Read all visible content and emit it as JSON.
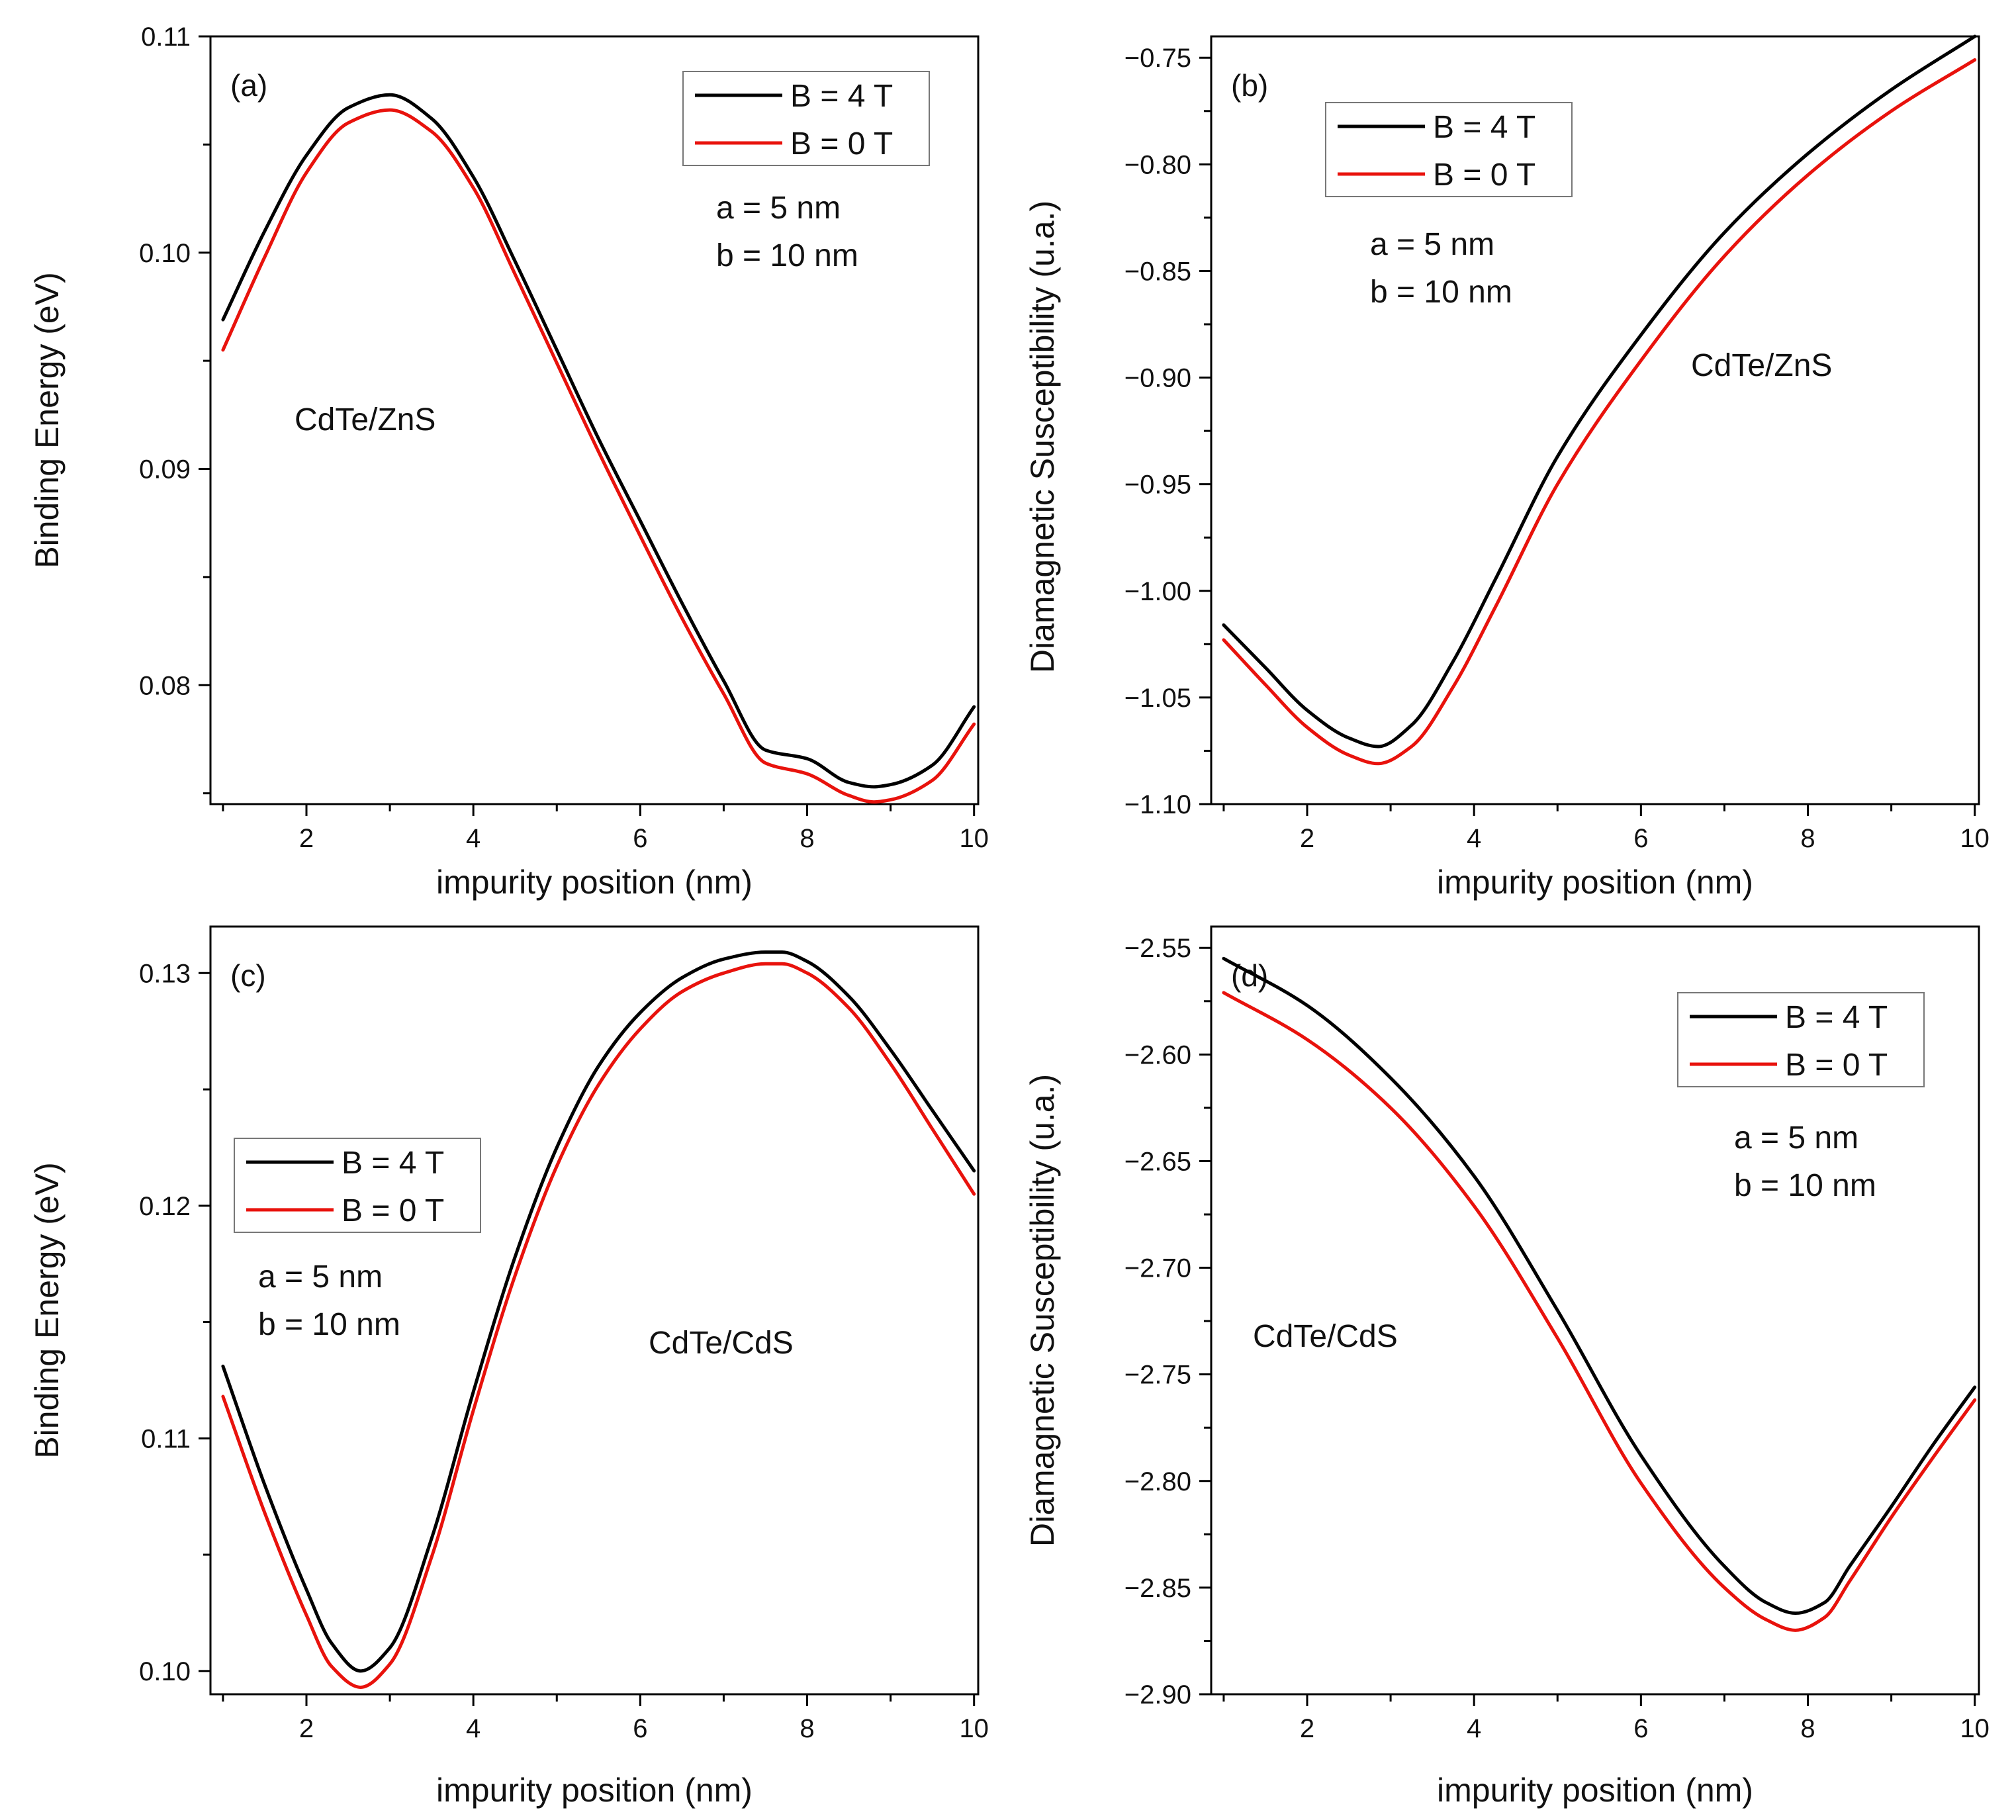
{
  "chart_data": [
    {
      "id": "a",
      "type": "line",
      "panel_label": "(a)",
      "xlabel": "impurity position (nm)",
      "ylabel": "Binding Energy (eV)",
      "xlim": [
        0.85,
        10.05
      ],
      "ylim": [
        0.0745,
        0.11
      ],
      "xticks": [
        2,
        4,
        6,
        8,
        10
      ],
      "xtick_labels": [
        "2",
        "4",
        "6",
        "8",
        "10"
      ],
      "yticks": [
        0.08,
        0.09,
        0.1,
        0.11
      ],
      "ytick_labels": [
        "0.08",
        "0.09",
        "0.10",
        "0.11"
      ],
      "legend_position": "top-right",
      "annotations": [
        "a = 5 nm",
        "b = 10 nm",
        "CdTe/ZnS"
      ],
      "x": [
        1.0,
        1.5,
        2.0,
        2.5,
        3.0,
        3.5,
        4.0,
        4.5,
        5.0,
        5.5,
        6.0,
        6.5,
        7.0,
        7.5,
        8.0,
        8.5,
        8.8,
        9.0,
        9.5,
        10.0
      ],
      "series": [
        {
          "name": "B = 4 T",
          "color": "#000000",
          "values": [
            0.0969,
            0.101,
            0.1045,
            0.1067,
            0.1073,
            0.1062,
            0.1035,
            0.0996,
            0.0955,
            0.0914,
            0.0876,
            0.0838,
            0.0802,
            0.077,
            0.0766,
            0.0755,
            0.0753,
            0.0754,
            0.0763,
            0.079
          ]
        },
        {
          "name": "B = 0 T",
          "color": "#e8120c",
          "values": [
            0.0955,
            0.0998,
            0.1037,
            0.106,
            0.1066,
            0.1056,
            0.103,
            0.099,
            0.0949,
            0.0908,
            0.0869,
            0.0831,
            0.0796,
            0.0764,
            0.0759,
            0.0749,
            0.0746,
            0.0747,
            0.0756,
            0.0782
          ]
        }
      ]
    },
    {
      "id": "b",
      "type": "line",
      "panel_label": "(b)",
      "xlabel": "impurity position (nm)",
      "ylabel": "Diamagnetic Susceptibility (u.a.)",
      "xlim": [
        0.85,
        10.05
      ],
      "ylim": [
        -1.1,
        -0.74
      ],
      "xticks": [
        2,
        4,
        6,
        8,
        10
      ],
      "xtick_labels": [
        "2",
        "4",
        "6",
        "8",
        "10"
      ],
      "yticks": [
        -1.1,
        -1.05,
        -1.0,
        -0.95,
        -0.9,
        -0.85,
        -0.8,
        -0.75
      ],
      "ytick_labels": [
        "−1.10",
        "−1.05",
        "−1.00",
        "−0.95",
        "−0.90",
        "−0.85",
        "−0.80",
        "−0.75"
      ],
      "legend_position": "top-left",
      "annotations": [
        "a = 5 nm",
        "b = 10 nm",
        "CdTe/ZnS"
      ],
      "x": [
        1.0,
        1.5,
        2.0,
        2.5,
        2.85,
        3.25,
        3.75,
        4.25,
        5.0,
        6.0,
        7.0,
        8.0,
        9.0,
        10.0
      ],
      "series": [
        {
          "name": "B = 4 T",
          "color": "#000000",
          "values": [
            -1.016,
            -1.036,
            -1.056,
            -1.069,
            -1.073,
            -1.063,
            -1.033,
            -0.995,
            -0.937,
            -0.88,
            -0.832,
            -0.795,
            -0.765,
            -0.74
          ]
        },
        {
          "name": "B = 0 T",
          "color": "#e8120c",
          "values": [
            -1.023,
            -1.044,
            -1.064,
            -1.077,
            -1.081,
            -1.073,
            -1.045,
            -1.008,
            -0.95,
            -0.892,
            -0.843,
            -0.805,
            -0.775,
            -0.751
          ]
        }
      ]
    },
    {
      "id": "c",
      "type": "line",
      "panel_label": "(c)",
      "xlabel": "impurity position (nm)",
      "ylabel": "Binding Energy (eV)",
      "xlim": [
        0.85,
        10.05
      ],
      "ylim": [
        0.099,
        0.132
      ],
      "xticks": [
        2,
        4,
        6,
        8,
        10
      ],
      "xtick_labels": [
        "2",
        "4",
        "6",
        "8",
        "10"
      ],
      "yticks": [
        0.1,
        0.11,
        0.12,
        0.13
      ],
      "ytick_labels": [
        "0.10",
        "0.11",
        "0.12",
        "0.13"
      ],
      "legend_position": "middle-left",
      "annotations": [
        "a = 5 nm",
        "b = 10 nm",
        "CdTe/CdS"
      ],
      "x": [
        1.0,
        1.5,
        2.0,
        2.3,
        2.65,
        3.0,
        3.5,
        4.0,
        4.5,
        5.0,
        5.5,
        6.0,
        6.5,
        7.0,
        7.5,
        7.7,
        8.0,
        8.5,
        9.0,
        9.5,
        10.0
      ],
      "series": [
        {
          "name": "B = 4 T",
          "color": "#000000",
          "values": [
            0.1131,
            0.108,
            0.1035,
            0.1012,
            0.1,
            0.101,
            0.1057,
            0.112,
            0.1178,
            0.1225,
            0.126,
            0.1283,
            0.1298,
            0.1306,
            0.1309,
            0.1309,
            0.1305,
            0.129,
            0.1267,
            0.1241,
            0.1215
          ]
        },
        {
          "name": "B = 0 T",
          "color": "#e8120c",
          "values": [
            0.1118,
            0.1068,
            0.1024,
            0.1002,
            0.0993,
            0.1003,
            0.1049,
            0.1112,
            0.117,
            0.1217,
            0.1252,
            0.1276,
            0.1292,
            0.13,
            0.1304,
            0.1304,
            0.13,
            0.1285,
            0.1261,
            0.1233,
            0.1205
          ]
        }
      ]
    },
    {
      "id": "d",
      "type": "line",
      "panel_label": "(d)",
      "xlabel": "impurity position (nm)",
      "ylabel": "Diamagnetic Susceptibility (u.a.)",
      "xlim": [
        0.85,
        10.05
      ],
      "ylim": [
        -2.9,
        -2.54
      ],
      "xticks": [
        2,
        4,
        6,
        8,
        10
      ],
      "xtick_labels": [
        "2",
        "4",
        "6",
        "8",
        "10"
      ],
      "yticks": [
        -2.9,
        -2.85,
        -2.8,
        -2.75,
        -2.7,
        -2.65,
        -2.6,
        -2.55
      ],
      "ytick_labels": [
        "−2.90",
        "−2.85",
        "−2.80",
        "−2.75",
        "−2.70",
        "−2.65",
        "−2.60",
        "−2.55"
      ],
      "legend_position": "top-right",
      "annotations": [
        "a = 5 nm",
        "b = 10 nm",
        "CdTe/CdS"
      ],
      "x": [
        1.0,
        2.0,
        3.0,
        4.0,
        5.0,
        6.0,
        7.0,
        7.5,
        7.85,
        8.2,
        8.5,
        9.0,
        9.5,
        10.0
      ],
      "series": [
        {
          "name": "B = 4 T",
          "color": "#000000",
          "values": [
            -2.555,
            -2.577,
            -2.611,
            -2.657,
            -2.72,
            -2.788,
            -2.84,
            -2.857,
            -2.862,
            -2.857,
            -2.84,
            -2.812,
            -2.783,
            -2.756
          ]
        },
        {
          "name": "B = 0 T",
          "color": "#e8120c",
          "values": [
            -2.571,
            -2.593,
            -2.625,
            -2.671,
            -2.733,
            -2.801,
            -2.85,
            -2.865,
            -2.87,
            -2.864,
            -2.847,
            -2.817,
            -2.789,
            -2.762
          ]
        }
      ]
    }
  ]
}
